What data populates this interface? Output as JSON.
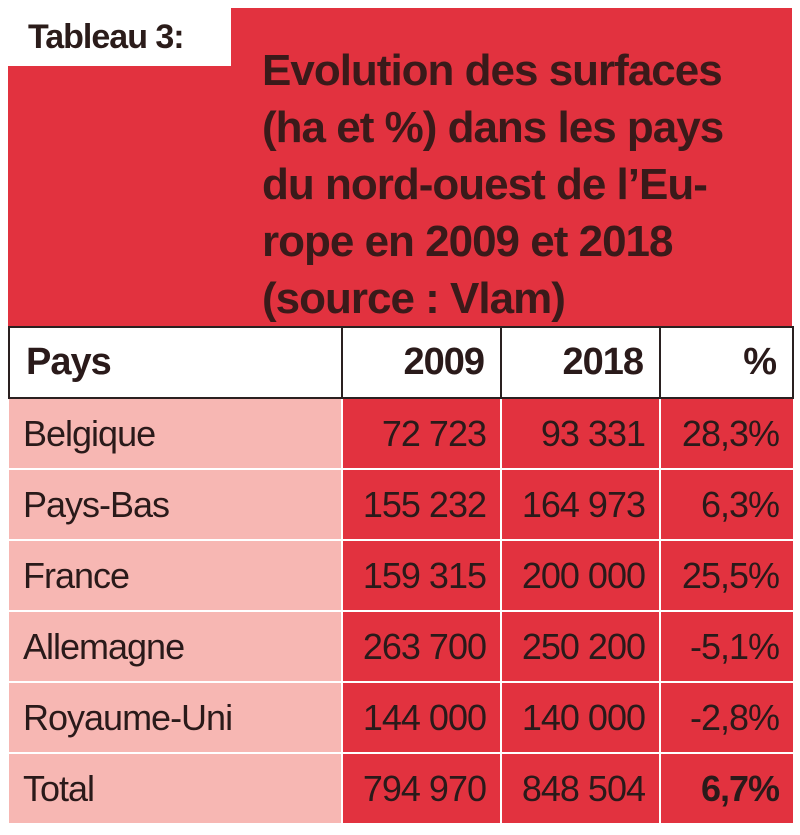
{
  "table_label": "Tableau 3:",
  "title": "Evolution des surfaces\n(ha et %) dans les pays\ndu nord-ouest de l’Eu-\nrope en 2009 et 2018\n(source : Vlam)",
  "columns": [
    "Pays",
    "2009",
    "2018",
    "%"
  ],
  "rows": [
    [
      "Belgique",
      "72 723",
      "93 331",
      "28,3%"
    ],
    [
      "Pays-Bas",
      "155 232",
      "164 973",
      "6,3%"
    ],
    [
      "France",
      "159 315",
      "200 000",
      "25,5%"
    ],
    [
      "Allemagne",
      "263 700",
      "250 200",
      "-5,1%"
    ],
    [
      "Royaume-Uni",
      "144 000",
      "140 000",
      "-2,8%"
    ],
    [
      "Total",
      "794 970",
      "848 504",
      "6,7%"
    ]
  ],
  "colors": {
    "header_red": "#e2323f",
    "country_pink": "#f7b7b3",
    "text_dark": "#2a1a1a"
  }
}
